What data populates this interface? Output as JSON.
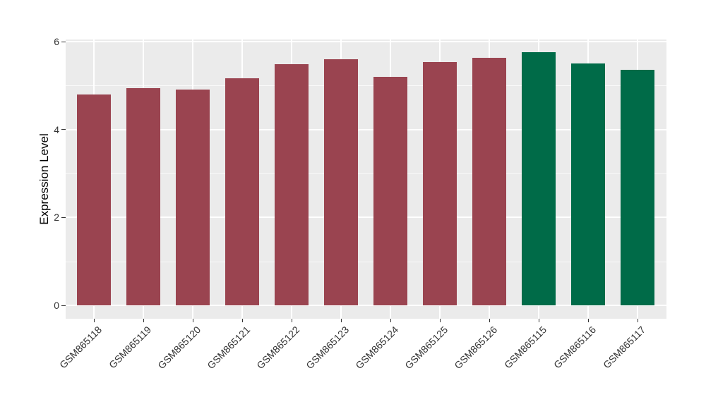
{
  "chart_data": {
    "type": "bar",
    "title": "",
    "xlabel": "",
    "ylabel": "Expression Level",
    "categories": [
      "GSM865118",
      "GSM865119",
      "GSM865120",
      "GSM865121",
      "GSM865122",
      "GSM865123",
      "GSM865124",
      "GSM865125",
      "GSM865126",
      "GSM865115",
      "GSM865116",
      "GSM865117"
    ],
    "values": [
      4.8,
      4.94,
      4.91,
      5.16,
      5.49,
      5.6,
      5.2,
      5.53,
      5.63,
      5.76,
      5.5,
      5.36
    ],
    "bar_colors": [
      "#9A4450",
      "#9A4450",
      "#9A4450",
      "#9A4450",
      "#9A4450",
      "#9A4450",
      "#9A4450",
      "#9A4450",
      "#9A4450",
      "#006B48",
      "#006B48",
      "#006B48"
    ],
    "ytick_labels": [
      "0",
      "2",
      "4",
      "6"
    ],
    "ytick_values": [
      0,
      2,
      4,
      6
    ],
    "ytick_minor_values": [
      1,
      3,
      5
    ],
    "ylim": [
      -0.3,
      6.05
    ],
    "grid": "on",
    "legend": "none",
    "colors": {
      "group_a_bar": "#9A4450",
      "group_b_bar": "#006B48",
      "panel_background": "#EBEBEB",
      "gridline": "#FFFFFF",
      "axis_text": "#333333",
      "axis_title": "#000000",
      "figure_background": "#FFFFFF"
    }
  }
}
